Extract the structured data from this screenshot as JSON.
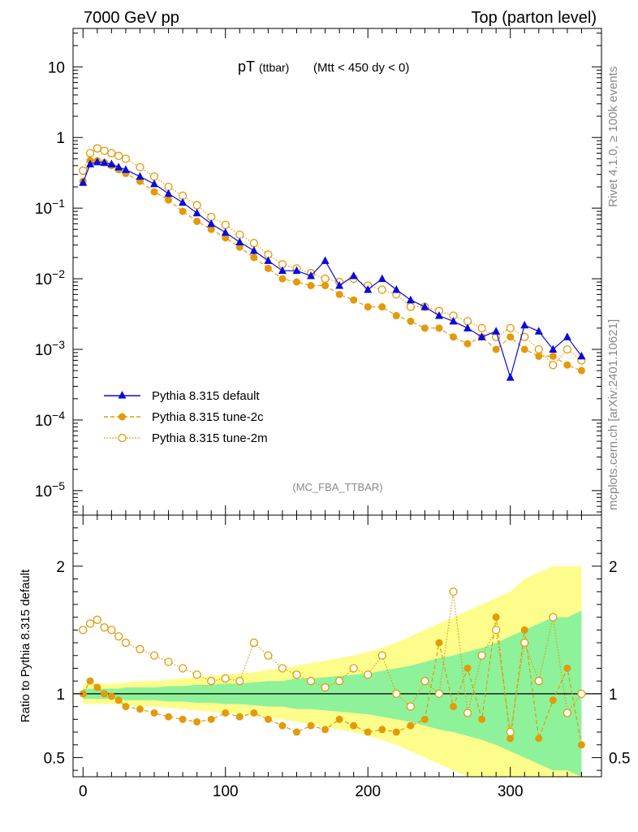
{
  "header": {
    "left": "7000 GeV pp",
    "right": "Top (parton level)"
  },
  "title": {
    "main": "pT",
    "sub": "(ttbar)",
    "cut": "(Mtt < 450 dy < 0)"
  },
  "side_text": {
    "right_top": "Rivet 4.1.0, ≥ 100k events",
    "right_bottom": "mcplots.cern.ch [arXiv:2401.10621]"
  },
  "analysis_label": "(MC_FBA_TTBAR)",
  "colors": {
    "default": "#0a0adb",
    "tune_2c": "#e39a09",
    "tune_2m": "#e39a09",
    "band_green": "#8ef29a",
    "band_yellow": "#fdfd8c"
  },
  "chart_data": [
    {
      "type": "line",
      "panel": "main",
      "xlabel": "",
      "ylabel": "",
      "yscale": "log",
      "xlim": [
        -7,
        364
      ],
      "ylim": [
        4.5e-06,
        35
      ],
      "y_tick_labels": [
        "10",
        "1",
        "10^-1",
        "10^-2",
        "10^-3",
        "10^-4",
        "10^-5"
      ],
      "legend": [
        "Pythia 8.315 default",
        "Pythia 8.315 tune-2c",
        "Pythia 8.315 tune-2m"
      ],
      "legend_position": "lower-left",
      "x": [
        0,
        5,
        10,
        15,
        20,
        25,
        30,
        40,
        50,
        60,
        70,
        80,
        90,
        100,
        110,
        120,
        130,
        140,
        150,
        160,
        170,
        180,
        190,
        200,
        210,
        220,
        230,
        240,
        250,
        260,
        270,
        280,
        290,
        300,
        310,
        320,
        330,
        340,
        350
      ],
      "series": [
        {
          "name": "Pythia 8.315 default",
          "marker": "triangle",
          "values": [
            0.23,
            0.42,
            0.45,
            0.44,
            0.42,
            0.38,
            0.35,
            0.28,
            0.22,
            0.16,
            0.12,
            0.085,
            0.06,
            0.045,
            0.033,
            0.025,
            0.018,
            0.013,
            0.013,
            0.011,
            0.018,
            0.008,
            0.011,
            0.007,
            0.01,
            0.007,
            0.005,
            0.004,
            0.003,
            0.0025,
            0.002,
            0.0015,
            0.0018,
            0.0004,
            0.0022,
            0.0018,
            0.001,
            0.0015,
            0.0008
          ]
        },
        {
          "name": "Pythia 8.315 tune-2c",
          "marker": "circle-filled",
          "values": [
            0.24,
            0.47,
            0.47,
            0.44,
            0.4,
            0.35,
            0.31,
            0.24,
            0.17,
            0.13,
            0.09,
            0.065,
            0.05,
            0.038,
            0.028,
            0.02,
            0.014,
            0.01,
            0.009,
            0.008,
            0.008,
            0.006,
            0.005,
            0.004,
            0.004,
            0.003,
            0.0025,
            0.002,
            0.002,
            0.0015,
            0.0012,
            0.0015,
            0.001,
            0.0015,
            0.001,
            0.0008,
            0.0008,
            0.0006,
            0.0005
          ]
        },
        {
          "name": "Pythia 8.315 tune-2m",
          "marker": "circle-open",
          "values": [
            0.34,
            0.6,
            0.7,
            0.65,
            0.6,
            0.55,
            0.5,
            0.38,
            0.28,
            0.2,
            0.15,
            0.11,
            0.075,
            0.058,
            0.042,
            0.032,
            0.022,
            0.016,
            0.014,
            0.012,
            0.01,
            0.009,
            0.01,
            0.008,
            0.007,
            0.006,
            0.004,
            0.004,
            0.0035,
            0.003,
            0.0025,
            0.002,
            0.0015,
            0.002,
            0.0015,
            0.001,
            0.0006,
            0.001,
            0.0007
          ]
        }
      ]
    },
    {
      "type": "line",
      "panel": "ratio",
      "xlabel": "",
      "ylabel": "Ratio to Pythia 8.315 default",
      "xlim": [
        -7,
        364
      ],
      "ylim": [
        0.35,
        2.4
      ],
      "x_ticks": [
        0,
        100,
        200,
        300
      ],
      "y_ticks": [
        0.5,
        1,
        2
      ],
      "reference": 1,
      "x": [
        0,
        5,
        10,
        15,
        20,
        25,
        30,
        40,
        50,
        60,
        70,
        80,
        90,
        100,
        110,
        120,
        130,
        140,
        150,
        160,
        170,
        180,
        190,
        200,
        210,
        220,
        230,
        240,
        250,
        260,
        270,
        280,
        290,
        300,
        310,
        320,
        330,
        340,
        350
      ],
      "band_green_half_width": [
        0.04,
        0.04,
        0.04,
        0.04,
        0.04,
        0.04,
        0.05,
        0.05,
        0.05,
        0.06,
        0.06,
        0.07,
        0.07,
        0.08,
        0.08,
        0.09,
        0.1,
        0.1,
        0.12,
        0.12,
        0.13,
        0.14,
        0.15,
        0.16,
        0.18,
        0.2,
        0.22,
        0.25,
        0.28,
        0.3,
        0.33,
        0.36,
        0.4,
        0.45,
        0.5,
        0.55,
        0.6,
        0.6,
        0.65
      ],
      "band_yellow_half_width": [
        0.08,
        0.08,
        0.08,
        0.08,
        0.08,
        0.08,
        0.09,
        0.1,
        0.1,
        0.11,
        0.12,
        0.13,
        0.14,
        0.15,
        0.16,
        0.17,
        0.19,
        0.2,
        0.22,
        0.24,
        0.26,
        0.28,
        0.3,
        0.33,
        0.36,
        0.4,
        0.45,
        0.5,
        0.55,
        0.6,
        0.65,
        0.7,
        0.75,
        0.8,
        0.9,
        0.95,
        1.0,
        1.0,
        1.0
      ],
      "series": [
        {
          "name": "Pythia 8.315 tune-2c",
          "marker": "circle-filled",
          "values": [
            1.0,
            1.1,
            1.05,
            1.0,
            0.98,
            0.95,
            0.9,
            0.88,
            0.85,
            0.82,
            0.8,
            0.78,
            0.8,
            0.85,
            0.82,
            0.85,
            0.8,
            0.75,
            0.7,
            0.75,
            0.72,
            0.8,
            0.75,
            0.7,
            0.72,
            0.7,
            0.75,
            0.8,
            1.4,
            0.9,
            1.2,
            0.8,
            1.6,
            0.65,
            1.5,
            0.65,
            0.95,
            1.2,
            0.6
          ]
        },
        {
          "name": "Pythia 8.315 tune-2m",
          "marker": "circle-open",
          "values": [
            1.5,
            1.55,
            1.58,
            1.52,
            1.5,
            1.45,
            1.4,
            1.35,
            1.3,
            1.25,
            1.2,
            1.15,
            1.1,
            1.12,
            1.1,
            1.4,
            1.3,
            1.2,
            1.15,
            1.1,
            1.05,
            1.1,
            1.2,
            1.15,
            1.3,
            1.0,
            0.9,
            1.1,
            1.0,
            1.8,
            0.85,
            1.3,
            1.5,
            0.7,
            1.4,
            1.1,
            1.6,
            0.85,
            1.0
          ]
        }
      ]
    }
  ]
}
